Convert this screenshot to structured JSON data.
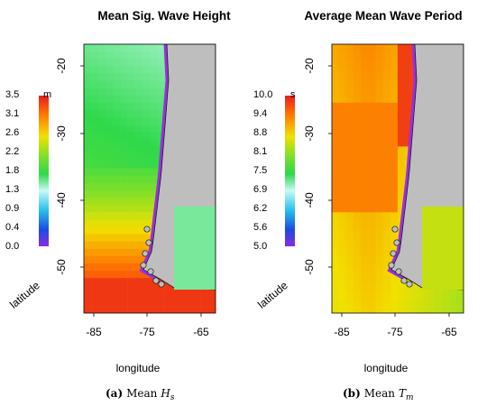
{
  "panels": [
    {
      "id": "a",
      "title": "Mean Sig. Wave Height",
      "xlabel": "longitude",
      "ylabel": "latitude",
      "x_ticks": [
        "-85",
        "-75",
        "-65"
      ],
      "y_ticks": [
        "-20",
        "-30",
        "-40",
        "-50"
      ],
      "colorbar": {
        "unit": "m",
        "labels": [
          "3.5",
          "3.1",
          "2.6",
          "2.2",
          "1.8",
          "1.3",
          "0.9",
          "0.4",
          "0.0"
        ],
        "colors": [
          "#e81c1c",
          "#ff7400",
          "#f2e000",
          "#7ee02a",
          "#2ed94a",
          "#c8faf3",
          "#28c2ec",
          "#1a4ce0",
          "#8a2be2"
        ]
      },
      "caption_tag": "(a)",
      "caption_text": "Mean",
      "caption_symbol": "H",
      "caption_sub": "s",
      "field": "height"
    },
    {
      "id": "b",
      "title": "Average Mean Wave Period",
      "xlabel": "longitude",
      "ylabel": "latitude",
      "x_ticks": [
        "-85",
        "-75",
        "-65"
      ],
      "y_ticks": [
        "-20",
        "-30",
        "-40",
        "-50"
      ],
      "colorbar": {
        "unit": "s",
        "labels": [
          "10.0",
          "9.4",
          "8.8",
          "8.1",
          "7.5",
          "6.9",
          "6.2",
          "5.6",
          "5.0"
        ],
        "colors": [
          "#e81c1c",
          "#ff7400",
          "#f2e000",
          "#7ee02a",
          "#2ed94a",
          "#c8faf3",
          "#28c2ec",
          "#1a4ce0",
          "#8a2be2"
        ]
      },
      "caption_tag": "(b)",
      "caption_text": "Mean",
      "caption_symbol": "T",
      "caption_sub": "m",
      "field": "period"
    }
  ],
  "colors": {
    "land": "#bebebe",
    "coast_purple": "#9b30e0",
    "coastline": "#1a1a1a"
  }
}
